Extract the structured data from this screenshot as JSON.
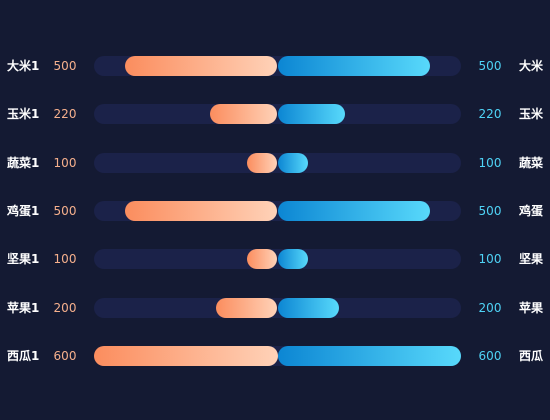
{
  "chart_data": {
    "type": "bar",
    "orientation": "horizontal-butterfly",
    "max": 600,
    "left_categories": [
      "大米1",
      "玉米1",
      "蔬菜1",
      "鸡蛋1",
      "坚果1",
      "苹果1",
      "西瓜1"
    ],
    "right_categories": [
      "大米",
      "玉米",
      "蔬菜",
      "鸡蛋",
      "坚果",
      "苹果",
      "西瓜"
    ],
    "left_values": [
      500,
      220,
      100,
      500,
      100,
      200,
      600
    ],
    "right_values": [
      500,
      220,
      100,
      500,
      100,
      200,
      600
    ],
    "colors": {
      "background": "#141a33",
      "track": "#1b2249",
      "left_start": "#fb8d5e",
      "left_end": "#ffd2b8",
      "right_start": "#0c86d3",
      "right_end": "#58d9fb",
      "left_value_text": "#f6b08d",
      "right_value_text": "#4fd3f6"
    }
  }
}
